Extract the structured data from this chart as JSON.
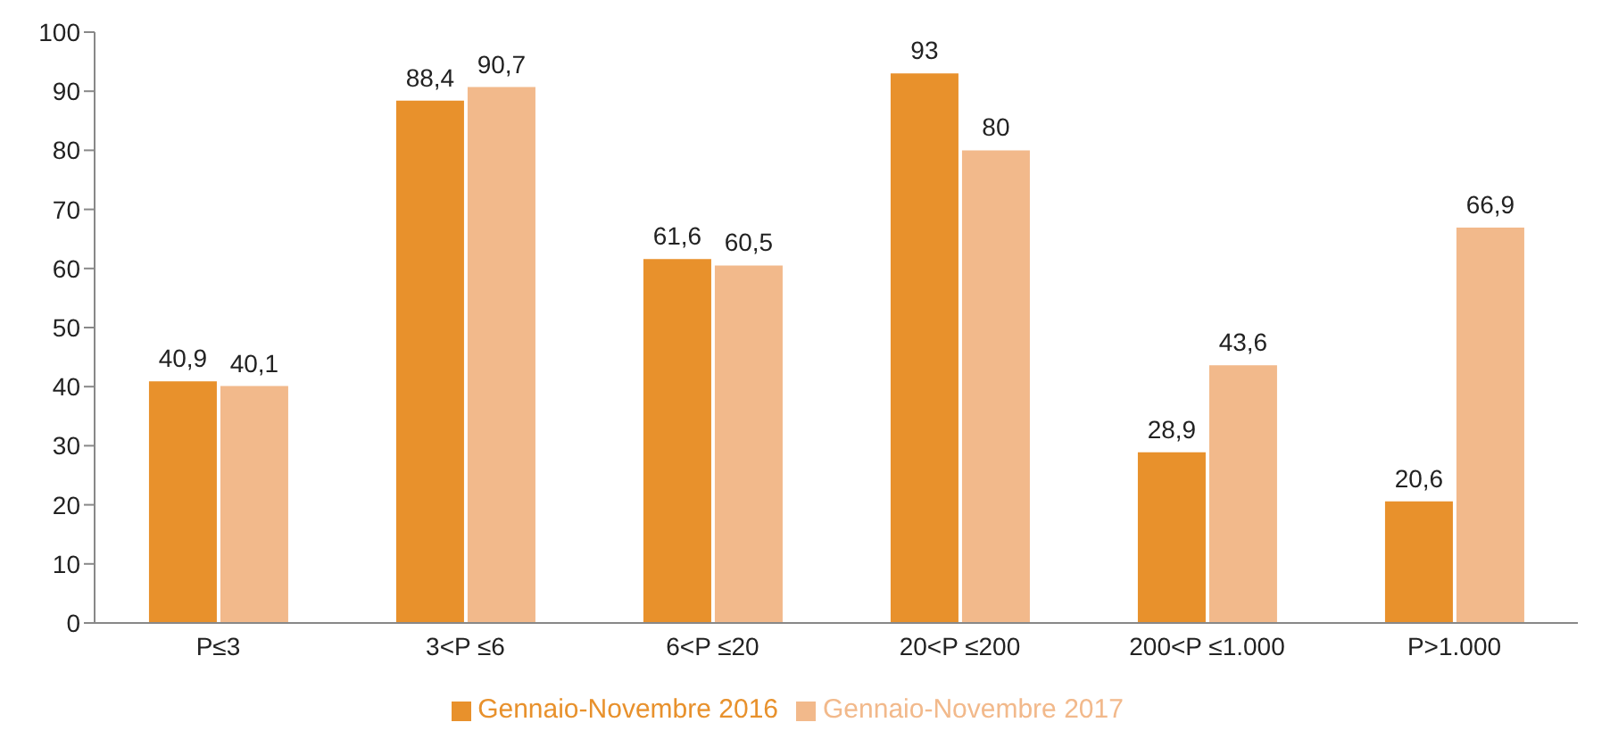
{
  "chart_data": {
    "type": "bar",
    "categories": [
      "P≤3",
      "3<P ≤6",
      "6<P ≤20",
      "20<P ≤200",
      "200<P ≤1.000",
      "P>1.000"
    ],
    "series": [
      {
        "name": "Gennaio-Novembre 2016",
        "color": "#e8912c",
        "values": [
          40.9,
          88.4,
          61.6,
          93,
          28.9,
          20.6
        ],
        "value_labels": [
          "40,9",
          "88,4",
          "61,6",
          "93",
          "28,9",
          "20,6"
        ]
      },
      {
        "name": "Gennaio-Novembre 2017",
        "color": "#f2b98b",
        "values": [
          40.1,
          90.7,
          60.5,
          80,
          43.6,
          66.9
        ],
        "value_labels": [
          "40,1",
          "90,7",
          "60,5",
          "80",
          "43,6",
          "66,9"
        ]
      }
    ],
    "ylim": [
      0,
      100
    ],
    "yticks": [
      0,
      10,
      20,
      30,
      40,
      50,
      60,
      70,
      80,
      90,
      100
    ],
    "legend": "bottom"
  }
}
